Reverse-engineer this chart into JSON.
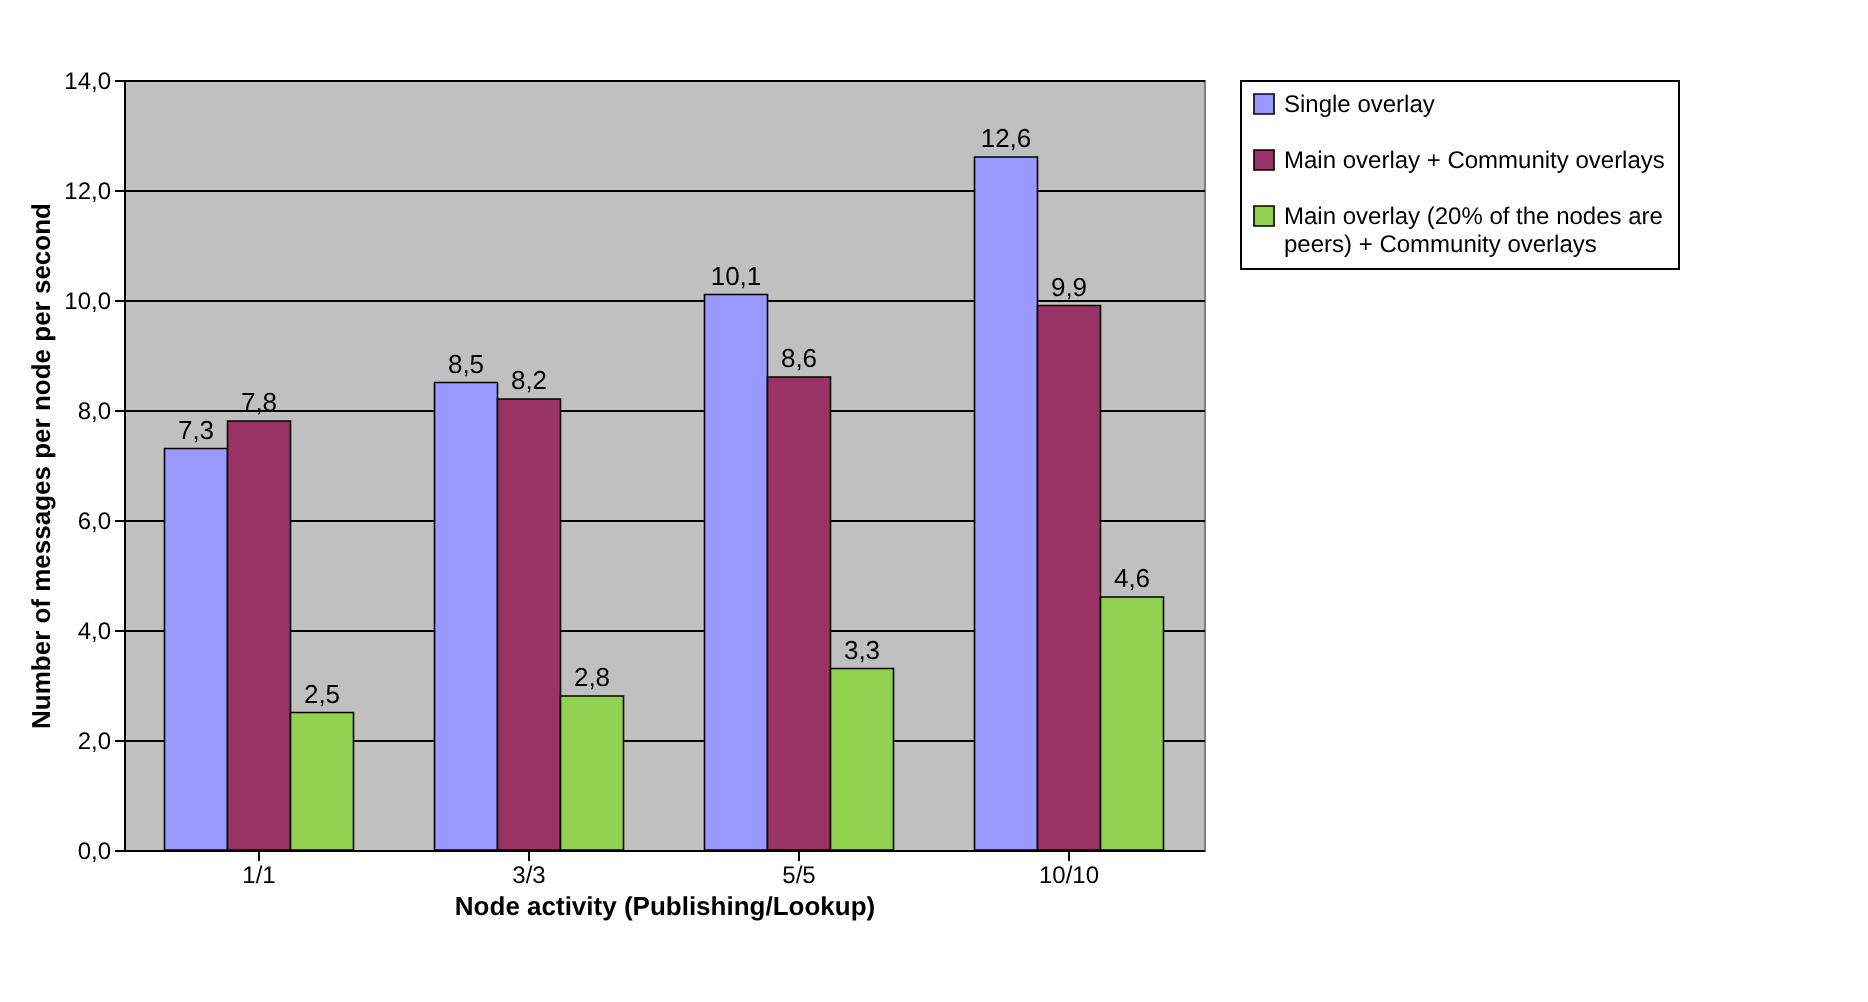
{
  "chart_data": {
    "type": "bar",
    "xlabel": "Node activity (Publishing/Lookup)",
    "ylabel": "Number of messages per node per second",
    "categories": [
      "1/1",
      "3/3",
      "5/5",
      "10/10"
    ],
    "series": [
      {
        "name": "Single overlay",
        "color": "#9999ff",
        "values": [
          7.3,
          8.5,
          10.1,
          12.6
        ],
        "value_labels": [
          "7,3",
          "8,5",
          "10,1",
          "12,6"
        ]
      },
      {
        "name": "Main overlay + Community overlays",
        "color": "#993366",
        "values": [
          7.8,
          8.2,
          8.6,
          9.9
        ],
        "value_labels": [
          "7,8",
          "8,2",
          "8,6",
          "9,9"
        ]
      },
      {
        "name": "Main overlay (20% of the nodes are peers) + Community overlays",
        "color": "#92d050",
        "values": [
          2.5,
          2.8,
          3.3,
          4.6
        ],
        "value_labels": [
          "2,5",
          "2,8",
          "3,3",
          "4,6"
        ]
      }
    ],
    "ylim": [
      0,
      14
    ],
    "yticks": [
      {
        "value": 0,
        "label": "0,0"
      },
      {
        "value": 2,
        "label": "2,0"
      },
      {
        "value": 4,
        "label": "4,0"
      },
      {
        "value": 6,
        "label": "6,0"
      },
      {
        "value": 8,
        "label": "8,0"
      },
      {
        "value": 10,
        "label": "10,0"
      },
      {
        "value": 12,
        "label": "12,0"
      },
      {
        "value": 14,
        "label": "14,0"
      }
    ],
    "grid": "y",
    "legend": "right"
  }
}
